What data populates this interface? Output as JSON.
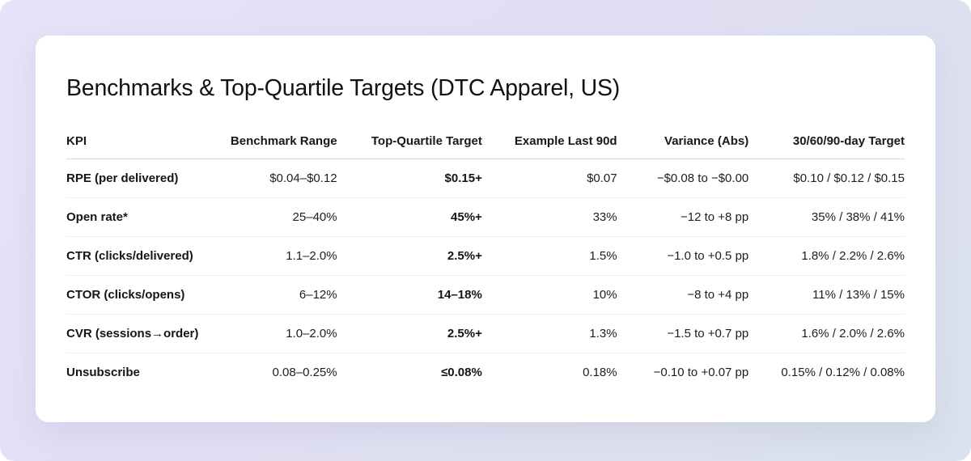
{
  "page": {
    "title": "Benchmarks & Top-Quartile Targets (DTC Apparel, US)"
  },
  "chart_data": {
    "type": "table",
    "title": "Benchmarks & Top-Quartile Targets (DTC Apparel, US)",
    "columns": [
      "KPI",
      "Benchmark Range",
      "Top-Quartile Target",
      "Example Last 90d",
      "Variance (Abs)",
      "30/60/90-day Target"
    ],
    "rows": [
      [
        "RPE (per delivered)",
        "$0.04–$0.12",
        "$0.15+",
        "$0.07",
        "−$0.08 to −$0.00",
        "$0.10 / $0.12 / $0.15"
      ],
      [
        "Open rate*",
        "25–40%",
        "45%+",
        "33%",
        "−12 to +8 pp",
        "35% / 38% / 41%"
      ],
      [
        "CTR (clicks/delivered)",
        "1.1–2.0%",
        "2.5%+",
        "1.5%",
        "−1.0 to +0.5 pp",
        "1.8% / 2.2% / 2.6%"
      ],
      [
        "CTOR (clicks/opens)",
        "6–12%",
        "14–18%",
        "10%",
        "−8 to +4 pp",
        "11% / 13% / 15%"
      ],
      [
        "CVR (sessions→order)",
        "1.0–2.0%",
        "2.5%+",
        "1.3%",
        "−1.5 to +0.7 pp",
        "1.6% / 2.0% / 2.6%"
      ],
      [
        "Unsubscribe",
        "0.08–0.25%",
        "≤0.08%",
        "0.18%",
        "−0.10 to +0.07 pp",
        "0.15% / 0.12% / 0.08%"
      ]
    ]
  },
  "colors": {
    "background_gradient_start": "#e7e2f8",
    "background_gradient_end": "#d9e1ec",
    "card_background": "#ffffff",
    "title_text": "#121212",
    "body_text": "#1e1e22",
    "header_border": "#d5d5da",
    "row_border": "#efeff2"
  }
}
